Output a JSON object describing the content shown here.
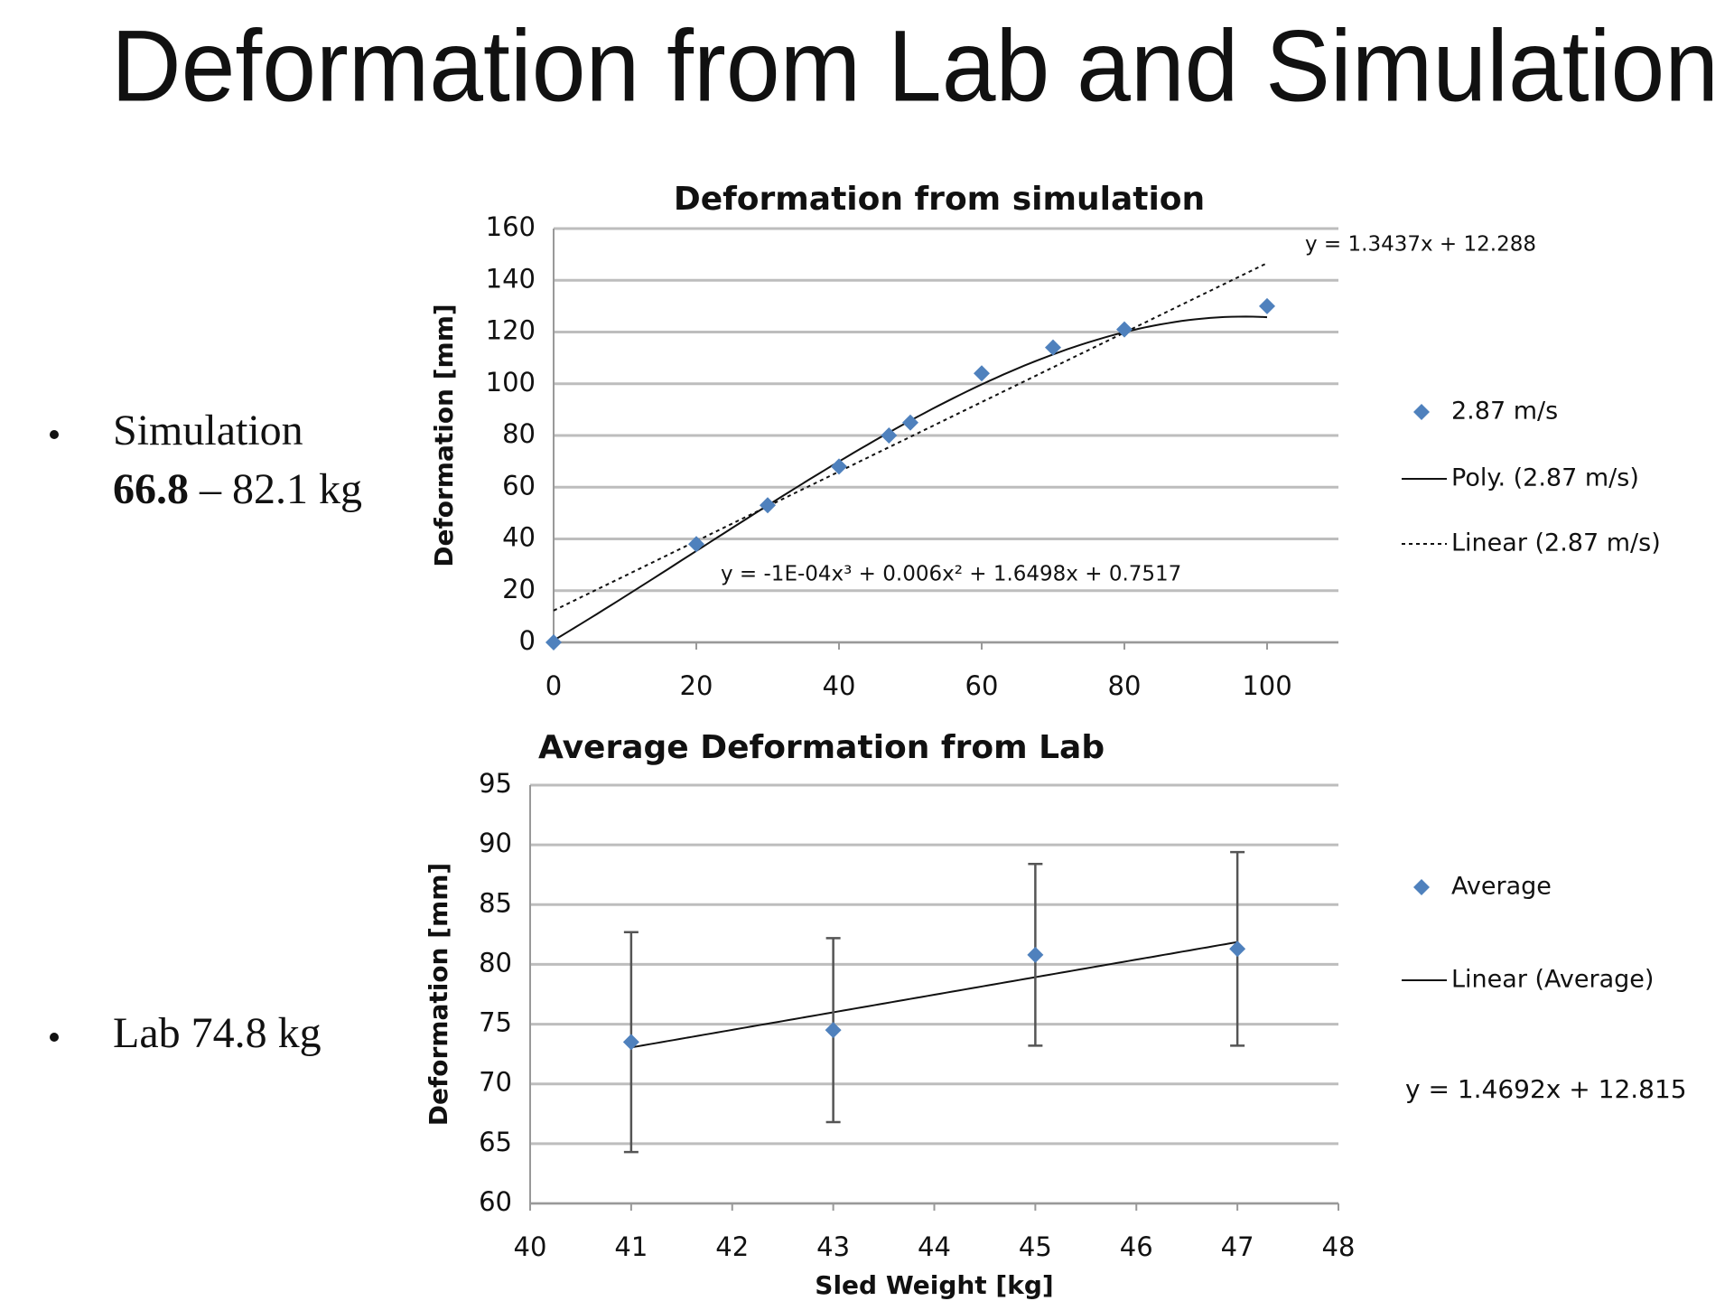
{
  "title": "Deformation from Lab and Simulation",
  "bullets": [
    {
      "label": "Simulation",
      "bold": "66.8",
      "rest": "– 82.1 kg"
    },
    {
      "label": "Lab 74.8 kg"
    }
  ],
  "chart_data": [
    {
      "type": "scatter",
      "title": "Deformation from simulation",
      "ylabel": "Deformation [mm]",
      "series": [
        {
          "name": "2.87 m/s",
          "color": "#4f81bd",
          "x": [
            0,
            20,
            30,
            40,
            47,
            50,
            60,
            70,
            80,
            100
          ],
          "values": [
            0,
            38,
            53,
            68,
            80,
            85,
            104,
            114,
            121,
            130
          ]
        }
      ],
      "trendlines": [
        {
          "name": "Poly. (2.87 m/s)",
          "style": "solid",
          "coefficients": [
            0.7517,
            1.6498,
            0.006,
            -0.0001
          ],
          "equation": "y = -1E-04x³ + 0.006x² + 1.6498x + 0.7517"
        },
        {
          "name": "Linear (2.87 m/s)",
          "style": "dotted",
          "coefficients": [
            12.288,
            1.3437
          ],
          "equation": "y = 1.3437x + 12.288"
        }
      ],
      "xlim": [
        0,
        110
      ],
      "xticks": [
        0,
        20,
        40,
        60,
        80,
        100
      ],
      "ylim": [
        0,
        160
      ],
      "yticks": [
        0,
        20,
        40,
        60,
        80,
        100,
        120,
        140,
        160
      ],
      "grid": true,
      "legend": "right"
    },
    {
      "type": "scatter",
      "title": "Average Deformation from Lab",
      "xlabel": "Sled Weight [kg]",
      "ylabel": "Deformation [mm]",
      "series": [
        {
          "name": "Average",
          "color": "#4f81bd",
          "x": [
            41,
            43,
            45,
            47
          ],
          "values": [
            73.5,
            74.5,
            80.8,
            81.3
          ],
          "errors": [
            9.2,
            7.7,
            7.6,
            8.1
          ]
        }
      ],
      "trendlines": [
        {
          "name": "Linear (Average)",
          "style": "solid",
          "coefficients": [
            12.815,
            1.4692
          ],
          "equation": "y = 1.4692x + 12.815"
        }
      ],
      "xlim": [
        40,
        48
      ],
      "xticks": [
        40,
        41,
        42,
        43,
        44,
        45,
        46,
        47,
        48
      ],
      "ylim": [
        60,
        95
      ],
      "yticks": [
        60,
        65,
        70,
        75,
        80,
        85,
        90,
        95
      ],
      "grid": true,
      "legend": "right"
    }
  ]
}
